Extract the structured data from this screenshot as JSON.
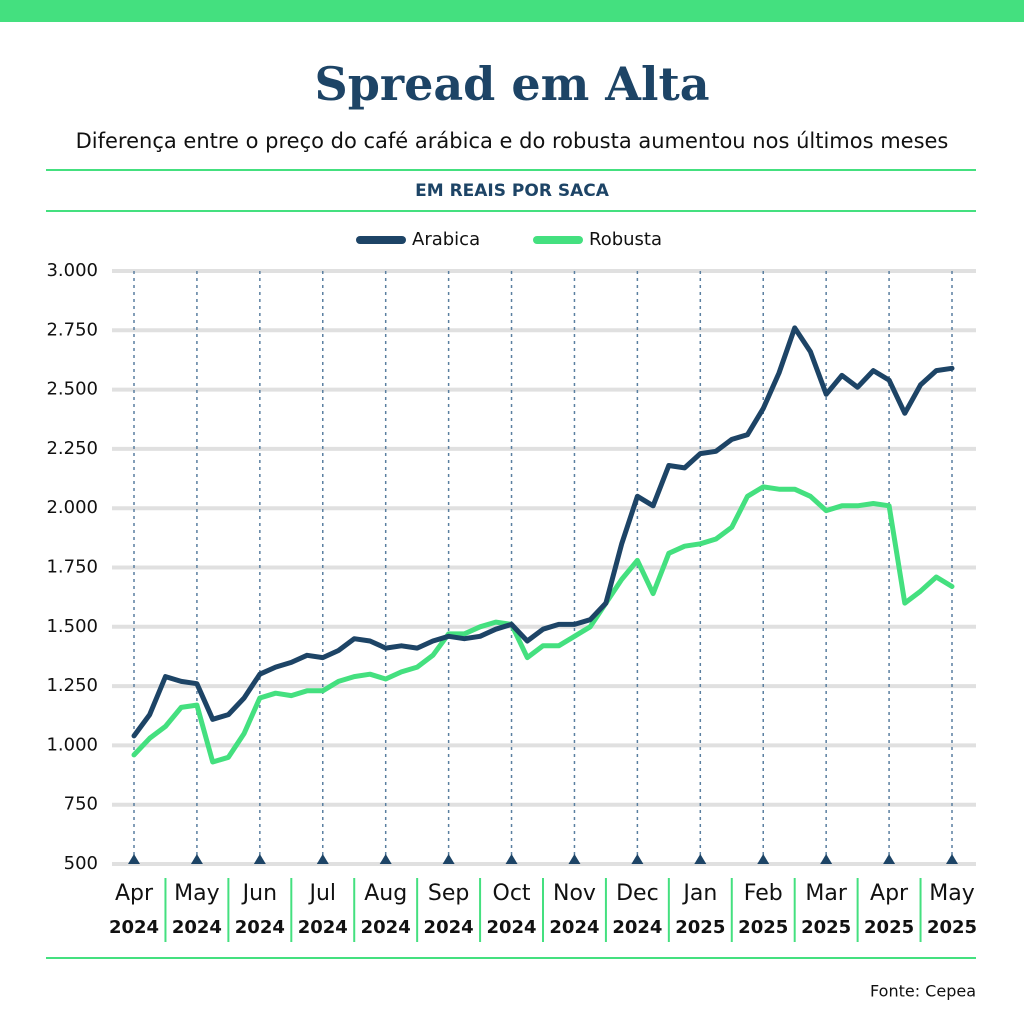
{
  "chart_data": {
    "type": "line",
    "title": "Spread em Alta",
    "subtitle": "Diferença entre o preço do café arábica e do robusta aumentou nos últimos meses",
    "y_label": "EM REAIS POR SACA",
    "source": "Fonte: Cepea",
    "categories": [
      "Apr",
      null,
      null,
      null,
      "May",
      null,
      null,
      null,
      "Jun",
      null,
      null,
      null,
      "Jul",
      null,
      null,
      null,
      "Aug",
      null,
      null,
      null,
      "Sep",
      null,
      null,
      null,
      "Oct",
      null,
      null,
      null,
      "Nov",
      null,
      null,
      null,
      "Dec",
      null,
      null,
      null,
      "Jan",
      null,
      null,
      null,
      "Feb",
      null,
      null,
      null,
      "Mar",
      null,
      null,
      null,
      "Apr",
      null,
      null,
      null,
      "May"
    ],
    "category_years": [
      "2024",
      null,
      null,
      null,
      "2024",
      null,
      null,
      null,
      "2024",
      null,
      null,
      null,
      "2024",
      null,
      null,
      null,
      "2024",
      null,
      null,
      null,
      "2024",
      null,
      null,
      null,
      "2024",
      null,
      null,
      null,
      "2024",
      null,
      null,
      null,
      "2024",
      null,
      null,
      null,
      "2025",
      null,
      null,
      null,
      "2025",
      null,
      null,
      null,
      "2025",
      null,
      null,
      null,
      "2025",
      null,
      null,
      null,
      "2025"
    ],
    "series": [
      {
        "name": "Arabica",
        "color": "#1d4466",
        "values": [
          1040,
          1130,
          1290,
          1270,
          1260,
          1110,
          1130,
          1200,
          1300,
          1330,
          1350,
          1380,
          1370,
          1400,
          1450,
          1440,
          1410,
          1420,
          1410,
          1440,
          1460,
          1450,
          1460,
          1490,
          1510,
          1440,
          1490,
          1510,
          1510,
          1530,
          1600,
          1850,
          2050,
          2010,
          2180,
          2170,
          2230,
          2240,
          2290,
          2310,
          2420,
          2570,
          2760,
          2660,
          2480,
          2560,
          2510,
          2580,
          2540,
          2400,
          2520,
          2580,
          2590
        ]
      },
      {
        "name": "Robusta",
        "color": "#44e07f",
        "values": [
          960,
          1030,
          1080,
          1160,
          1170,
          930,
          950,
          1050,
          1200,
          1220,
          1210,
          1230,
          1230,
          1270,
          1290,
          1300,
          1280,
          1310,
          1330,
          1380,
          1470,
          1470,
          1500,
          1520,
          1510,
          1370,
          1420,
          1420,
          1460,
          1500,
          1600,
          1700,
          1780,
          1640,
          1810,
          1840,
          1850,
          1870,
          1920,
          2050,
          2090,
          2080,
          2080,
          2050,
          1990,
          2010,
          2010,
          2020,
          2010,
          1600,
          1650,
          1710,
          1670
        ]
      }
    ],
    "ylim": [
      500,
      3000
    ],
    "yticks": [
      500,
      750,
      {
        "value": 1000,
        "label": "1.000"
      },
      {
        "value": 1250,
        "label": "1.250"
      },
      {
        "value": 1500,
        "label": "1.500"
      },
      {
        "value": 1750,
        "label": "1.750"
      },
      {
        "value": 2000,
        "label": "2.000"
      },
      {
        "value": 2250,
        "label": "2.250"
      },
      {
        "value": 2500,
        "label": "2.500"
      },
      {
        "value": 2750,
        "label": "2.750"
      },
      {
        "value": 3000,
        "label": "3.000"
      }
    ],
    "grid": true,
    "legend": "top"
  }
}
